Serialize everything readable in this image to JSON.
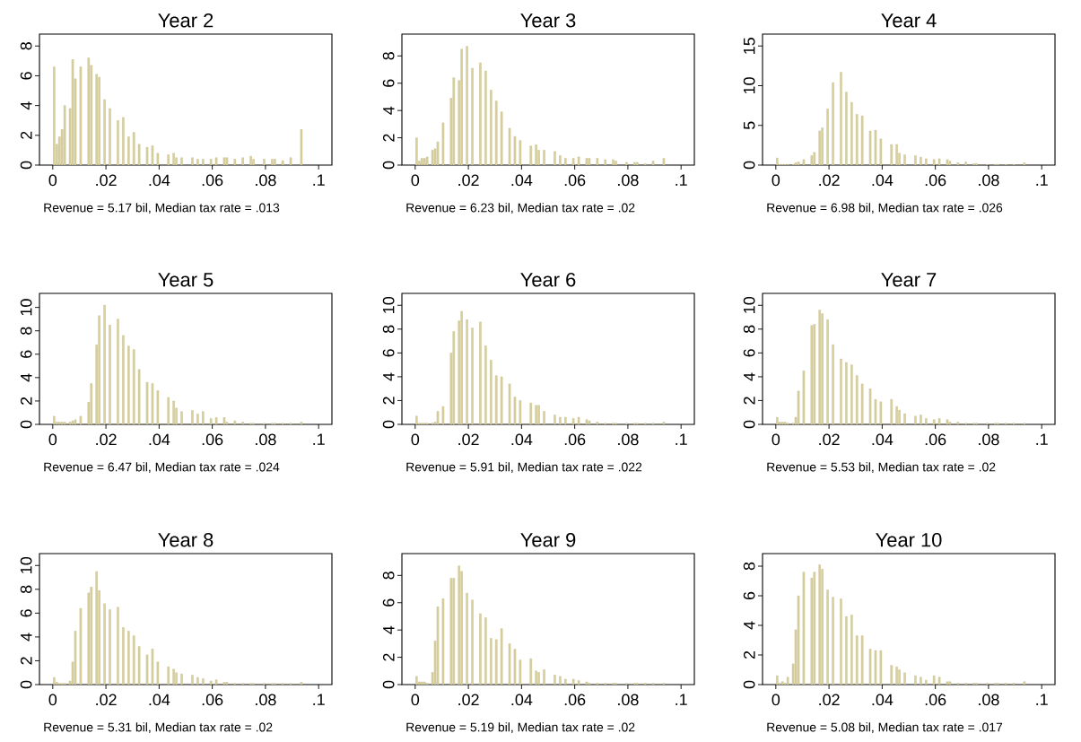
{
  "chart_data": [
    {
      "type": "histogram",
      "title": "Year 2",
      "annotations": [
        "Revenue = 5.17 bil, Median tax rate = .013"
      ],
      "color": "#d9d09c",
      "xlim": [
        -0.005,
        0.105
      ],
      "ylim": [
        0,
        8.8
      ],
      "yticks": [
        0,
        2,
        4,
        6,
        8
      ],
      "xticks": [
        0,
        {
          "value": 0.02,
          "label": ".02"
        },
        {
          "value": 0.04,
          "label": ".04"
        },
        {
          "value": 0.06,
          "label": ".06"
        },
        {
          "value": 0.08,
          "label": ".08"
        },
        {
          "value": 0.1,
          "label": ".1"
        }
      ],
      "bins": [
        0,
        0.001,
        0.002,
        0.003,
        0.004,
        0.005,
        0.006,
        0.007,
        0.008,
        0.009,
        0.01,
        0.011,
        0.012,
        0.013,
        0.014,
        0.015,
        0.016,
        0.017,
        0.018,
        0.019,
        0.02,
        0.021,
        0.022,
        0.023,
        0.024,
        0.025,
        0.026,
        0.027,
        0.028,
        0.029,
        0.03,
        0.031,
        0.032,
        0.033,
        0.034,
        0.035,
        0.036,
        0.037,
        0.038,
        0.039,
        0.04,
        0.041,
        0.042,
        0.043,
        0.044,
        0.045,
        0.046,
        0.047,
        0.048,
        0.049,
        0.05,
        0.051,
        0.052,
        0.053,
        0.054,
        0.055,
        0.056,
        0.057,
        0.058,
        0.059,
        0.06,
        0.061,
        0.062,
        0.063,
        0.064,
        0.065,
        0.066,
        0.067,
        0.068,
        0.069,
        0.07,
        0.071,
        0.072,
        0.073,
        0.074,
        0.075,
        0.076,
        0.077,
        0.078,
        0.079,
        0.08,
        0.081,
        0.082,
        0.083,
        0.084,
        0.085,
        0.086,
        0.087,
        0.088,
        0.089,
        0.09,
        0.091,
        0.092,
        0.093,
        0.094
      ],
      "values": [
        6.6,
        1.4,
        1.9,
        2.4,
        4.0,
        0,
        3.8,
        7.1,
        5.8,
        0,
        6.6,
        0,
        0,
        7.2,
        6.7,
        0,
        6.1,
        5.9,
        0,
        4.4,
        0,
        3.8,
        0,
        0,
        3.0,
        0,
        3.2,
        0,
        1.9,
        0,
        2.2,
        0,
        1.4,
        0,
        0,
        1.2,
        0,
        1.3,
        0,
        0.8,
        0,
        0,
        0,
        0.7,
        0,
        0.8,
        0.5,
        0,
        0.5,
        0,
        0,
        0,
        0.5,
        0,
        0.4,
        0,
        0.4,
        0,
        0,
        0.4,
        0,
        0.5,
        0,
        0,
        0.5,
        0.5,
        0,
        0,
        0.4,
        0,
        0,
        0.5,
        0,
        0,
        0.6,
        0.4,
        0,
        0,
        0,
        0.4,
        0,
        0,
        0.4,
        0.4,
        0,
        0,
        0.3,
        0,
        0,
        0.5,
        0,
        0,
        0,
        2.4
      ]
    },
    {
      "type": "histogram",
      "title": "Year 3",
      "annotations": [
        "Revenue = 6.23 bil, Median tax rate = .02"
      ],
      "color": "#d9d09c",
      "xlim": [
        -0.005,
        0.105
      ],
      "ylim": [
        0,
        9.6
      ],
      "yticks": [
        0,
        2,
        4,
        6,
        8
      ],
      "xticks": [
        0,
        {
          "value": 0.02,
          "label": ".02"
        },
        {
          "value": 0.04,
          "label": ".04"
        },
        {
          "value": 0.06,
          "label": ".06"
        },
        {
          "value": 0.08,
          "label": ".08"
        },
        {
          "value": 0.1,
          "label": ".1"
        }
      ],
      "bins": [
        0,
        0.001,
        0.002,
        0.003,
        0.004,
        0.005,
        0.006,
        0.007,
        0.008,
        0.009,
        0.01,
        0.011,
        0.012,
        0.013,
        0.014,
        0.015,
        0.016,
        0.017,
        0.018,
        0.019,
        0.02,
        0.021,
        0.022,
        0.023,
        0.024,
        0.025,
        0.026,
        0.027,
        0.028,
        0.029,
        0.03,
        0.031,
        0.032,
        0.033,
        0.034,
        0.035,
        0.036,
        0.037,
        0.038,
        0.039,
        0.04,
        0.041,
        0.042,
        0.043,
        0.044,
        0.045,
        0.046,
        0.047,
        0.048,
        0.049,
        0.05,
        0.051,
        0.052,
        0.053,
        0.054,
        0.055,
        0.056,
        0.057,
        0.058,
        0.059,
        0.06,
        0.061,
        0.062,
        0.063,
        0.064,
        0.065,
        0.066,
        0.067,
        0.068,
        0.069,
        0.07,
        0.071,
        0.072,
        0.073,
        0.074,
        0.075,
        0.076,
        0.077,
        0.078,
        0.079,
        0.08,
        0.081,
        0.082,
        0.083,
        0.084,
        0.085,
        0.086,
        0.087,
        0.088,
        0.089,
        0.09,
        0.091,
        0.092,
        0.093,
        0.094
      ],
      "values": [
        2.0,
        0.3,
        0.5,
        0.5,
        0.6,
        0,
        1.1,
        1.2,
        1.7,
        0,
        3.1,
        0,
        0,
        4.9,
        6.4,
        0,
        6.2,
        8.5,
        0,
        8.7,
        0,
        7.1,
        0,
        0,
        7.5,
        0,
        6.9,
        0,
        5.5,
        0,
        4.7,
        0,
        3.9,
        0,
        0,
        2.7,
        0,
        2.1,
        0,
        1.8,
        0,
        0,
        0,
        1.4,
        0,
        1.5,
        1.1,
        0,
        1.1,
        0,
        0,
        0,
        1.0,
        0,
        0.7,
        0,
        0.5,
        0,
        0,
        0.5,
        0,
        0.6,
        0,
        0,
        0.5,
        0.5,
        0,
        0,
        0.5,
        0,
        0,
        0.4,
        0,
        0,
        0.4,
        0.3,
        0,
        0,
        0,
        0.2,
        0,
        0,
        0.2,
        0.2,
        0,
        0,
        0.1,
        0,
        0,
        0.3,
        0,
        0,
        0,
        0.5
      ]
    },
    {
      "type": "histogram",
      "title": "Year 4",
      "annotations": [
        "Revenue = 6.98 bil, Median tax rate = .026"
      ],
      "color": "#d9d09c",
      "xlim": [
        -0.005,
        0.105
      ],
      "ylim": [
        0,
        16.5
      ],
      "yticks": [
        0,
        5,
        10,
        15
      ],
      "xticks": [
        0,
        {
          "value": 0.02,
          "label": ".02"
        },
        {
          "value": 0.04,
          "label": ".04"
        },
        {
          "value": 0.06,
          "label": ".06"
        },
        {
          "value": 0.08,
          "label": ".08"
        },
        {
          "value": 0.1,
          "label": ".1"
        }
      ],
      "bins": [
        0,
        0.001,
        0.002,
        0.003,
        0.004,
        0.005,
        0.006,
        0.007,
        0.008,
        0.009,
        0.01,
        0.011,
        0.012,
        0.013,
        0.014,
        0.015,
        0.016,
        0.017,
        0.018,
        0.019,
        0.02,
        0.021,
        0.022,
        0.023,
        0.024,
        0.025,
        0.026,
        0.027,
        0.028,
        0.029,
        0.03,
        0.031,
        0.032,
        0.033,
        0.034,
        0.035,
        0.036,
        0.037,
        0.038,
        0.039,
        0.04,
        0.041,
        0.042,
        0.043,
        0.044,
        0.045,
        0.046,
        0.047,
        0.048,
        0.049,
        0.05,
        0.051,
        0.052,
        0.053,
        0.054,
        0.055,
        0.056,
        0.057,
        0.058,
        0.059,
        0.06,
        0.061,
        0.062,
        0.063,
        0.064,
        0.065,
        0.066,
        0.067,
        0.068,
        0.069,
        0.07,
        0.071,
        0.072,
        0.073,
        0.074,
        0.075,
        0.076,
        0.077,
        0.078,
        0.079,
        0.08,
        0.081,
        0.082,
        0.083,
        0.084,
        0.085,
        0.086,
        0.087,
        0.088,
        0.089,
        0.09,
        0.091,
        0.092,
        0.093,
        0.094
      ],
      "values": [
        0.9,
        0.1,
        0.1,
        0.1,
        0.1,
        0,
        0.1,
        0.3,
        0.4,
        0,
        0.7,
        0,
        0,
        1.2,
        1.6,
        0,
        4.3,
        4.7,
        0,
        7.1,
        0,
        10.4,
        0,
        0,
        11.7,
        0,
        9.2,
        0,
        7.9,
        0,
        6.4,
        0,
        6.2,
        0,
        0,
        4.3,
        0,
        4.4,
        0,
        3.3,
        0,
        0,
        0,
        2.6,
        0,
        2.6,
        1.5,
        0,
        1.3,
        0,
        0,
        0,
        1.2,
        0,
        1.0,
        0,
        0.8,
        0,
        0,
        0.7,
        0,
        0.8,
        0,
        0,
        0.7,
        0.5,
        0,
        0,
        0.3,
        0,
        0,
        0.4,
        0,
        0,
        0.2,
        0.2,
        0,
        0,
        0,
        0.1,
        0,
        0,
        0.1,
        0.1,
        0,
        0,
        0.1,
        0,
        0,
        0.1,
        0,
        0,
        0,
        0.3
      ]
    },
    {
      "type": "histogram",
      "title": "Year 5",
      "annotations": [
        "Revenue = 6.47 bil, Median tax rate = .024"
      ],
      "color": "#d9d09c",
      "xlim": [
        -0.005,
        0.105
      ],
      "ylim": [
        0,
        11.2
      ],
      "yticks": [
        0,
        2,
        4,
        6,
        8,
        10
      ],
      "xticks": [
        0,
        {
          "value": 0.02,
          "label": ".02"
        },
        {
          "value": 0.04,
          "label": ".04"
        },
        {
          "value": 0.06,
          "label": ".06"
        },
        {
          "value": 0.08,
          "label": ".08"
        },
        {
          "value": 0.1,
          "label": ".1"
        }
      ],
      "bins": [
        0,
        0.001,
        0.002,
        0.003,
        0.004,
        0.005,
        0.006,
        0.007,
        0.008,
        0.009,
        0.01,
        0.011,
        0.012,
        0.013,
        0.014,
        0.015,
        0.016,
        0.017,
        0.018,
        0.019,
        0.02,
        0.021,
        0.022,
        0.023,
        0.024,
        0.025,
        0.026,
        0.027,
        0.028,
        0.029,
        0.03,
        0.031,
        0.032,
        0.033,
        0.034,
        0.035,
        0.036,
        0.037,
        0.038,
        0.039,
        0.04,
        0.041,
        0.042,
        0.043,
        0.044,
        0.045,
        0.046,
        0.047,
        0.048,
        0.049,
        0.05,
        0.051,
        0.052,
        0.053,
        0.054,
        0.055,
        0.056,
        0.057,
        0.058,
        0.059,
        0.06,
        0.061,
        0.062,
        0.063,
        0.064,
        0.065,
        0.066,
        0.067,
        0.068,
        0.069,
        0.07,
        0.071,
        0.072,
        0.073,
        0.074,
        0.075,
        0.076,
        0.077,
        0.078,
        0.079,
        0.08,
        0.081,
        0.082,
        0.083,
        0.084,
        0.085,
        0.086,
        0.087,
        0.088,
        0.089,
        0.09,
        0.091,
        0.092,
        0.093,
        0.094
      ],
      "values": [
        0.7,
        0.2,
        0.2,
        0.2,
        0.2,
        0,
        0.2,
        0.3,
        0.4,
        0,
        0.7,
        0,
        0,
        1.9,
        3.5,
        0,
        6.8,
        9.3,
        0,
        10.2,
        0,
        8.5,
        0,
        0,
        9.0,
        0,
        7.6,
        0,
        6.7,
        0,
        6.4,
        0,
        4.7,
        0,
        0,
        3.6,
        0,
        3.5,
        0,
        2.9,
        0,
        0,
        0,
        2.3,
        0,
        2.0,
        1.4,
        0,
        1.1,
        0,
        0,
        0,
        1.2,
        0,
        0.9,
        0,
        1.1,
        0,
        0,
        0.5,
        0,
        0.6,
        0,
        0,
        0.6,
        0.2,
        0,
        0,
        0.3,
        0,
        0,
        0.2,
        0,
        0,
        0.1,
        0.1,
        0,
        0,
        0,
        0.1,
        0,
        0,
        0.1,
        0.1,
        0,
        0,
        0.1,
        0,
        0,
        0.1,
        0,
        0,
        0,
        0.2
      ]
    },
    {
      "type": "histogram",
      "title": "Year 6",
      "annotations": [
        "Revenue = 5.91 bil, Median tax rate = .022"
      ],
      "color": "#d9d09c",
      "xlim": [
        -0.005,
        0.105
      ],
      "ylim": [
        0,
        11
      ],
      "yticks": [
        0,
        2,
        4,
        6,
        8,
        10
      ],
      "xticks": [
        0,
        {
          "value": 0.02,
          "label": ".02"
        },
        {
          "value": 0.04,
          "label": ".04"
        },
        {
          "value": 0.06,
          "label": ".06"
        },
        {
          "value": 0.08,
          "label": ".08"
        },
        {
          "value": 0.1,
          "label": ".1"
        }
      ],
      "bins": [
        0,
        0.001,
        0.002,
        0.003,
        0.004,
        0.005,
        0.006,
        0.007,
        0.008,
        0.009,
        0.01,
        0.011,
        0.012,
        0.013,
        0.014,
        0.015,
        0.016,
        0.017,
        0.018,
        0.019,
        0.02,
        0.021,
        0.022,
        0.023,
        0.024,
        0.025,
        0.026,
        0.027,
        0.028,
        0.029,
        0.03,
        0.031,
        0.032,
        0.033,
        0.034,
        0.035,
        0.036,
        0.037,
        0.038,
        0.039,
        0.04,
        0.041,
        0.042,
        0.043,
        0.044,
        0.045,
        0.046,
        0.047,
        0.048,
        0.049,
        0.05,
        0.051,
        0.052,
        0.053,
        0.054,
        0.055,
        0.056,
        0.057,
        0.058,
        0.059,
        0.06,
        0.061,
        0.062,
        0.063,
        0.064,
        0.065,
        0.066,
        0.067,
        0.068,
        0.069,
        0.07,
        0.071,
        0.072,
        0.073,
        0.074,
        0.075,
        0.076,
        0.077,
        0.078,
        0.079,
        0.08,
        0.081,
        0.082,
        0.083,
        0.084,
        0.085,
        0.086,
        0.087,
        0.088,
        0.089,
        0.09,
        0.091,
        0.092,
        0.093,
        0.094
      ],
      "values": [
        0.7,
        0.1,
        0.1,
        0.1,
        0.1,
        0,
        0.1,
        0.2,
        1.1,
        0,
        1.5,
        0,
        0,
        6.0,
        7.8,
        0,
        8.7,
        9.5,
        0,
        8.8,
        0,
        8.1,
        0,
        0,
        8.6,
        0,
        6.6,
        0,
        5.4,
        0,
        4.1,
        0,
        4.0,
        0,
        0,
        3.4,
        0,
        2.3,
        0,
        2.0,
        0,
        0,
        0,
        1.8,
        0,
        1.6,
        1.6,
        0,
        1.1,
        0,
        0,
        0,
        0.8,
        0,
        0.6,
        0,
        0.6,
        0,
        0,
        0.5,
        0,
        0.6,
        0,
        0,
        0.4,
        0.3,
        0,
        0,
        0.2,
        0,
        0,
        0.1,
        0,
        0,
        0.1,
        0.1,
        0,
        0,
        0,
        0.1,
        0,
        0,
        0.1,
        0.1,
        0,
        0,
        0.1,
        0,
        0,
        0.1,
        0,
        0,
        0,
        0.2
      ]
    },
    {
      "type": "histogram",
      "title": "Year 7",
      "annotations": [
        "Revenue = 5.53 bil, Median tax rate = .02"
      ],
      "color": "#d9d09c",
      "xlim": [
        -0.005,
        0.105
      ],
      "ylim": [
        0,
        11
      ],
      "yticks": [
        0,
        2,
        4,
        6,
        8,
        10
      ],
      "xticks": [
        0,
        {
          "value": 0.02,
          "label": ".02"
        },
        {
          "value": 0.04,
          "label": ".04"
        },
        {
          "value": 0.06,
          "label": ".06"
        },
        {
          "value": 0.08,
          "label": ".08"
        },
        {
          "value": 0.1,
          "label": ".1"
        }
      ],
      "bins": [
        0,
        0.001,
        0.002,
        0.003,
        0.004,
        0.005,
        0.006,
        0.007,
        0.008,
        0.009,
        0.01,
        0.011,
        0.012,
        0.013,
        0.014,
        0.015,
        0.016,
        0.017,
        0.018,
        0.019,
        0.02,
        0.021,
        0.022,
        0.023,
        0.024,
        0.025,
        0.026,
        0.027,
        0.028,
        0.029,
        0.03,
        0.031,
        0.032,
        0.033,
        0.034,
        0.035,
        0.036,
        0.037,
        0.038,
        0.039,
        0.04,
        0.041,
        0.042,
        0.043,
        0.044,
        0.045,
        0.046,
        0.047,
        0.048,
        0.049,
        0.05,
        0.051,
        0.052,
        0.053,
        0.054,
        0.055,
        0.056,
        0.057,
        0.058,
        0.059,
        0.06,
        0.061,
        0.062,
        0.063,
        0.064,
        0.065,
        0.066,
        0.067,
        0.068,
        0.069,
        0.07,
        0.071,
        0.072,
        0.073,
        0.074,
        0.075,
        0.076,
        0.077,
        0.078,
        0.079,
        0.08,
        0.081,
        0.082,
        0.083,
        0.084,
        0.085,
        0.086,
        0.087,
        0.088,
        0.089,
        0.09,
        0.091,
        0.092,
        0.093,
        0.094
      ],
      "values": [
        0.6,
        0.2,
        0.2,
        0.2,
        0.1,
        0,
        0.1,
        0.6,
        2.8,
        0,
        4.5,
        0,
        0,
        8.3,
        8.4,
        0,
        9.6,
        9.3,
        0,
        8.8,
        0,
        6.7,
        0,
        0,
        5.5,
        0,
        5.2,
        0,
        5.0,
        0,
        4.1,
        0,
        3.4,
        0,
        0,
        3.0,
        0,
        2.1,
        0,
        1.9,
        0,
        0,
        0,
        2.1,
        0,
        1.5,
        1.2,
        0,
        0.9,
        0,
        0,
        0,
        0.7,
        0,
        0.8,
        0,
        0.5,
        0,
        0,
        0.4,
        0,
        0.5,
        0,
        0,
        0.4,
        0.2,
        0,
        0,
        0.2,
        0,
        0,
        0.1,
        0,
        0,
        0.1,
        0.1,
        0,
        0,
        0,
        0.1,
        0,
        0,
        0.1,
        0.1,
        0,
        0,
        0.1,
        0,
        0,
        0.1,
        0,
        0,
        0,
        0.1
      ]
    },
    {
      "type": "histogram",
      "title": "Year 8",
      "annotations": [
        "Revenue = 5.31 bil, Median tax rate = .02"
      ],
      "color": "#d9d09c",
      "xlim": [
        -0.005,
        0.105
      ],
      "ylim": [
        0,
        11
      ],
      "yticks": [
        0,
        2,
        4,
        6,
        8,
        10
      ],
      "xticks": [
        0,
        {
          "value": 0.02,
          "label": ".02"
        },
        {
          "value": 0.04,
          "label": ".04"
        },
        {
          "value": 0.06,
          "label": ".06"
        },
        {
          "value": 0.08,
          "label": ".08"
        },
        {
          "value": 0.1,
          "label": ".1"
        }
      ],
      "bins": [
        0,
        0.001,
        0.002,
        0.003,
        0.004,
        0.005,
        0.006,
        0.007,
        0.008,
        0.009,
        0.01,
        0.011,
        0.012,
        0.013,
        0.014,
        0.015,
        0.016,
        0.017,
        0.018,
        0.019,
        0.02,
        0.021,
        0.022,
        0.023,
        0.024,
        0.025,
        0.026,
        0.027,
        0.028,
        0.029,
        0.03,
        0.031,
        0.032,
        0.033,
        0.034,
        0.035,
        0.036,
        0.037,
        0.038,
        0.039,
        0.04,
        0.041,
        0.042,
        0.043,
        0.044,
        0.045,
        0.046,
        0.047,
        0.048,
        0.049,
        0.05,
        0.051,
        0.052,
        0.053,
        0.054,
        0.055,
        0.056,
        0.057,
        0.058,
        0.059,
        0.06,
        0.061,
        0.062,
        0.063,
        0.064,
        0.065,
        0.066,
        0.067,
        0.068,
        0.069,
        0.07,
        0.071,
        0.072,
        0.073,
        0.074,
        0.075,
        0.076,
        0.077,
        0.078,
        0.079,
        0.08,
        0.081,
        0.082,
        0.083,
        0.084,
        0.085,
        0.086,
        0.087,
        0.088,
        0.089,
        0.09,
        0.091,
        0.092,
        0.093,
        0.094
      ],
      "values": [
        0.6,
        0.2,
        0.1,
        0.1,
        0.1,
        0,
        0.3,
        1.9,
        4.5,
        0,
        6.4,
        0,
        0,
        7.7,
        8.2,
        0,
        9.5,
        7.9,
        0,
        6.8,
        0,
        6.3,
        0,
        0,
        6.5,
        0,
        4.8,
        0,
        4.5,
        0,
        4.1,
        0,
        3.2,
        0,
        0,
        2.5,
        0,
        3.0,
        0,
        1.9,
        0,
        0,
        0,
        1.5,
        0,
        1.3,
        1.0,
        0,
        0.9,
        0,
        0,
        0,
        0.8,
        0,
        0.6,
        0,
        0.5,
        0,
        0,
        0.3,
        0,
        0.4,
        0,
        0,
        0.2,
        0.2,
        0,
        0,
        0.1,
        0,
        0,
        0.1,
        0,
        0,
        0.1,
        0.1,
        0,
        0,
        0,
        0.1,
        0,
        0,
        0.1,
        0.1,
        0,
        0,
        0.1,
        0,
        0,
        0.1,
        0,
        0,
        0,
        0.2
      ]
    },
    {
      "type": "histogram",
      "title": "Year 9",
      "annotations": [
        "Revenue = 5.19 bil, Median tax rate = .02"
      ],
      "color": "#d9d09c",
      "xlim": [
        -0.005,
        0.105
      ],
      "ylim": [
        0,
        9.6
      ],
      "yticks": [
        0,
        2,
        4,
        6,
        8
      ],
      "xticks": [
        0,
        {
          "value": 0.02,
          "label": ".02"
        },
        {
          "value": 0.04,
          "label": ".04"
        },
        {
          "value": 0.06,
          "label": ".06"
        },
        {
          "value": 0.08,
          "label": ".08"
        },
        {
          "value": 0.1,
          "label": ".1"
        }
      ],
      "bins": [
        0,
        0.001,
        0.002,
        0.003,
        0.004,
        0.005,
        0.006,
        0.007,
        0.008,
        0.009,
        0.01,
        0.011,
        0.012,
        0.013,
        0.014,
        0.015,
        0.016,
        0.017,
        0.018,
        0.019,
        0.02,
        0.021,
        0.022,
        0.023,
        0.024,
        0.025,
        0.026,
        0.027,
        0.028,
        0.029,
        0.03,
        0.031,
        0.032,
        0.033,
        0.034,
        0.035,
        0.036,
        0.037,
        0.038,
        0.039,
        0.04,
        0.041,
        0.042,
        0.043,
        0.044,
        0.045,
        0.046,
        0.047,
        0.048,
        0.049,
        0.05,
        0.051,
        0.052,
        0.053,
        0.054,
        0.055,
        0.056,
        0.057,
        0.058,
        0.059,
        0.06,
        0.061,
        0.062,
        0.063,
        0.064,
        0.065,
        0.066,
        0.067,
        0.068,
        0.069,
        0.07,
        0.071,
        0.072,
        0.073,
        0.074,
        0.075,
        0.076,
        0.077,
        0.078,
        0.079,
        0.08,
        0.081,
        0.082,
        0.083,
        0.084,
        0.085,
        0.086,
        0.087,
        0.088,
        0.089,
        0.09,
        0.091,
        0.092,
        0.093,
        0.094
      ],
      "values": [
        0.6,
        0.2,
        0.2,
        0.2,
        0.1,
        0,
        0.9,
        3.2,
        5.7,
        0,
        6.3,
        0,
        0,
        7.8,
        7.8,
        0,
        8.7,
        8.3,
        0,
        6.7,
        0,
        6.2,
        0,
        0,
        5.2,
        0,
        4.9,
        0,
        3.4,
        0,
        3.3,
        0,
        4.1,
        0,
        0,
        3.0,
        0,
        2.6,
        0,
        1.8,
        0,
        0,
        0,
        1.9,
        0,
        1.0,
        0.9,
        0,
        1.1,
        0,
        0,
        0,
        0.7,
        0,
        0.6,
        0,
        0.4,
        0,
        0,
        0.4,
        0,
        0.3,
        0,
        0,
        0.2,
        0.1,
        0,
        0,
        0.1,
        0,
        0,
        0.1,
        0,
        0,
        0.1,
        0.1,
        0,
        0,
        0,
        0.1,
        0,
        0,
        0.1,
        0.1,
        0,
        0,
        0.1,
        0,
        0,
        0.1,
        0,
        0,
        0,
        0.1
      ]
    },
    {
      "type": "histogram",
      "title": "Year 10",
      "annotations": [
        "Revenue = 5.08 bil, Median tax rate = .017"
      ],
      "color": "#d9d09c",
      "xlim": [
        -0.005,
        0.105
      ],
      "ylim": [
        0,
        8.85
      ],
      "yticks": [
        0,
        2,
        4,
        6,
        8
      ],
      "xticks": [
        0,
        {
          "value": 0.02,
          "label": ".02"
        },
        {
          "value": 0.04,
          "label": ".04"
        },
        {
          "value": 0.06,
          "label": ".06"
        },
        {
          "value": 0.08,
          "label": ".08"
        },
        {
          "value": 0.1,
          "label": ".1"
        }
      ],
      "bins": [
        0,
        0.001,
        0.002,
        0.003,
        0.004,
        0.005,
        0.006,
        0.007,
        0.008,
        0.009,
        0.01,
        0.011,
        0.012,
        0.013,
        0.014,
        0.015,
        0.016,
        0.017,
        0.018,
        0.019,
        0.02,
        0.021,
        0.022,
        0.023,
        0.024,
        0.025,
        0.026,
        0.027,
        0.028,
        0.029,
        0.03,
        0.031,
        0.032,
        0.033,
        0.034,
        0.035,
        0.036,
        0.037,
        0.038,
        0.039,
        0.04,
        0.041,
        0.042,
        0.043,
        0.044,
        0.045,
        0.046,
        0.047,
        0.048,
        0.049,
        0.05,
        0.051,
        0.052,
        0.053,
        0.054,
        0.055,
        0.056,
        0.057,
        0.058,
        0.059,
        0.06,
        0.061,
        0.062,
        0.063,
        0.064,
        0.065,
        0.066,
        0.067,
        0.068,
        0.069,
        0.07,
        0.071,
        0.072,
        0.073,
        0.074,
        0.075,
        0.076,
        0.077,
        0.078,
        0.079,
        0.08,
        0.081,
        0.082,
        0.083,
        0.084,
        0.085,
        0.086,
        0.087,
        0.088,
        0.089,
        0.09,
        0.091,
        0.092,
        0.093,
        0.094
      ],
      "values": [
        0.6,
        0.1,
        0.2,
        0.1,
        0.5,
        0,
        1.4,
        3.7,
        6.0,
        0,
        7.6,
        0,
        0,
        7.2,
        7.6,
        0,
        8.1,
        7.8,
        0,
        6.4,
        0,
        5.9,
        0,
        0,
        5.8,
        0,
        4.6,
        0,
        4.7,
        0,
        3.3,
        0,
        3.3,
        0,
        0,
        2.4,
        0,
        2.3,
        0,
        2.3,
        0,
        0,
        0,
        1.3,
        0,
        1.2,
        1.0,
        0,
        0.8,
        0,
        0,
        0,
        0.6,
        0,
        0.5,
        0,
        0.3,
        0,
        0,
        0.6,
        0,
        0.5,
        0,
        0,
        0.2,
        0.2,
        0,
        0,
        0.1,
        0,
        0,
        0.1,
        0,
        0,
        0.1,
        0.1,
        0,
        0,
        0,
        0.1,
        0,
        0,
        0.1,
        0.1,
        0,
        0,
        0.1,
        0,
        0,
        0.1,
        0,
        0,
        0,
        0.2
      ]
    }
  ]
}
